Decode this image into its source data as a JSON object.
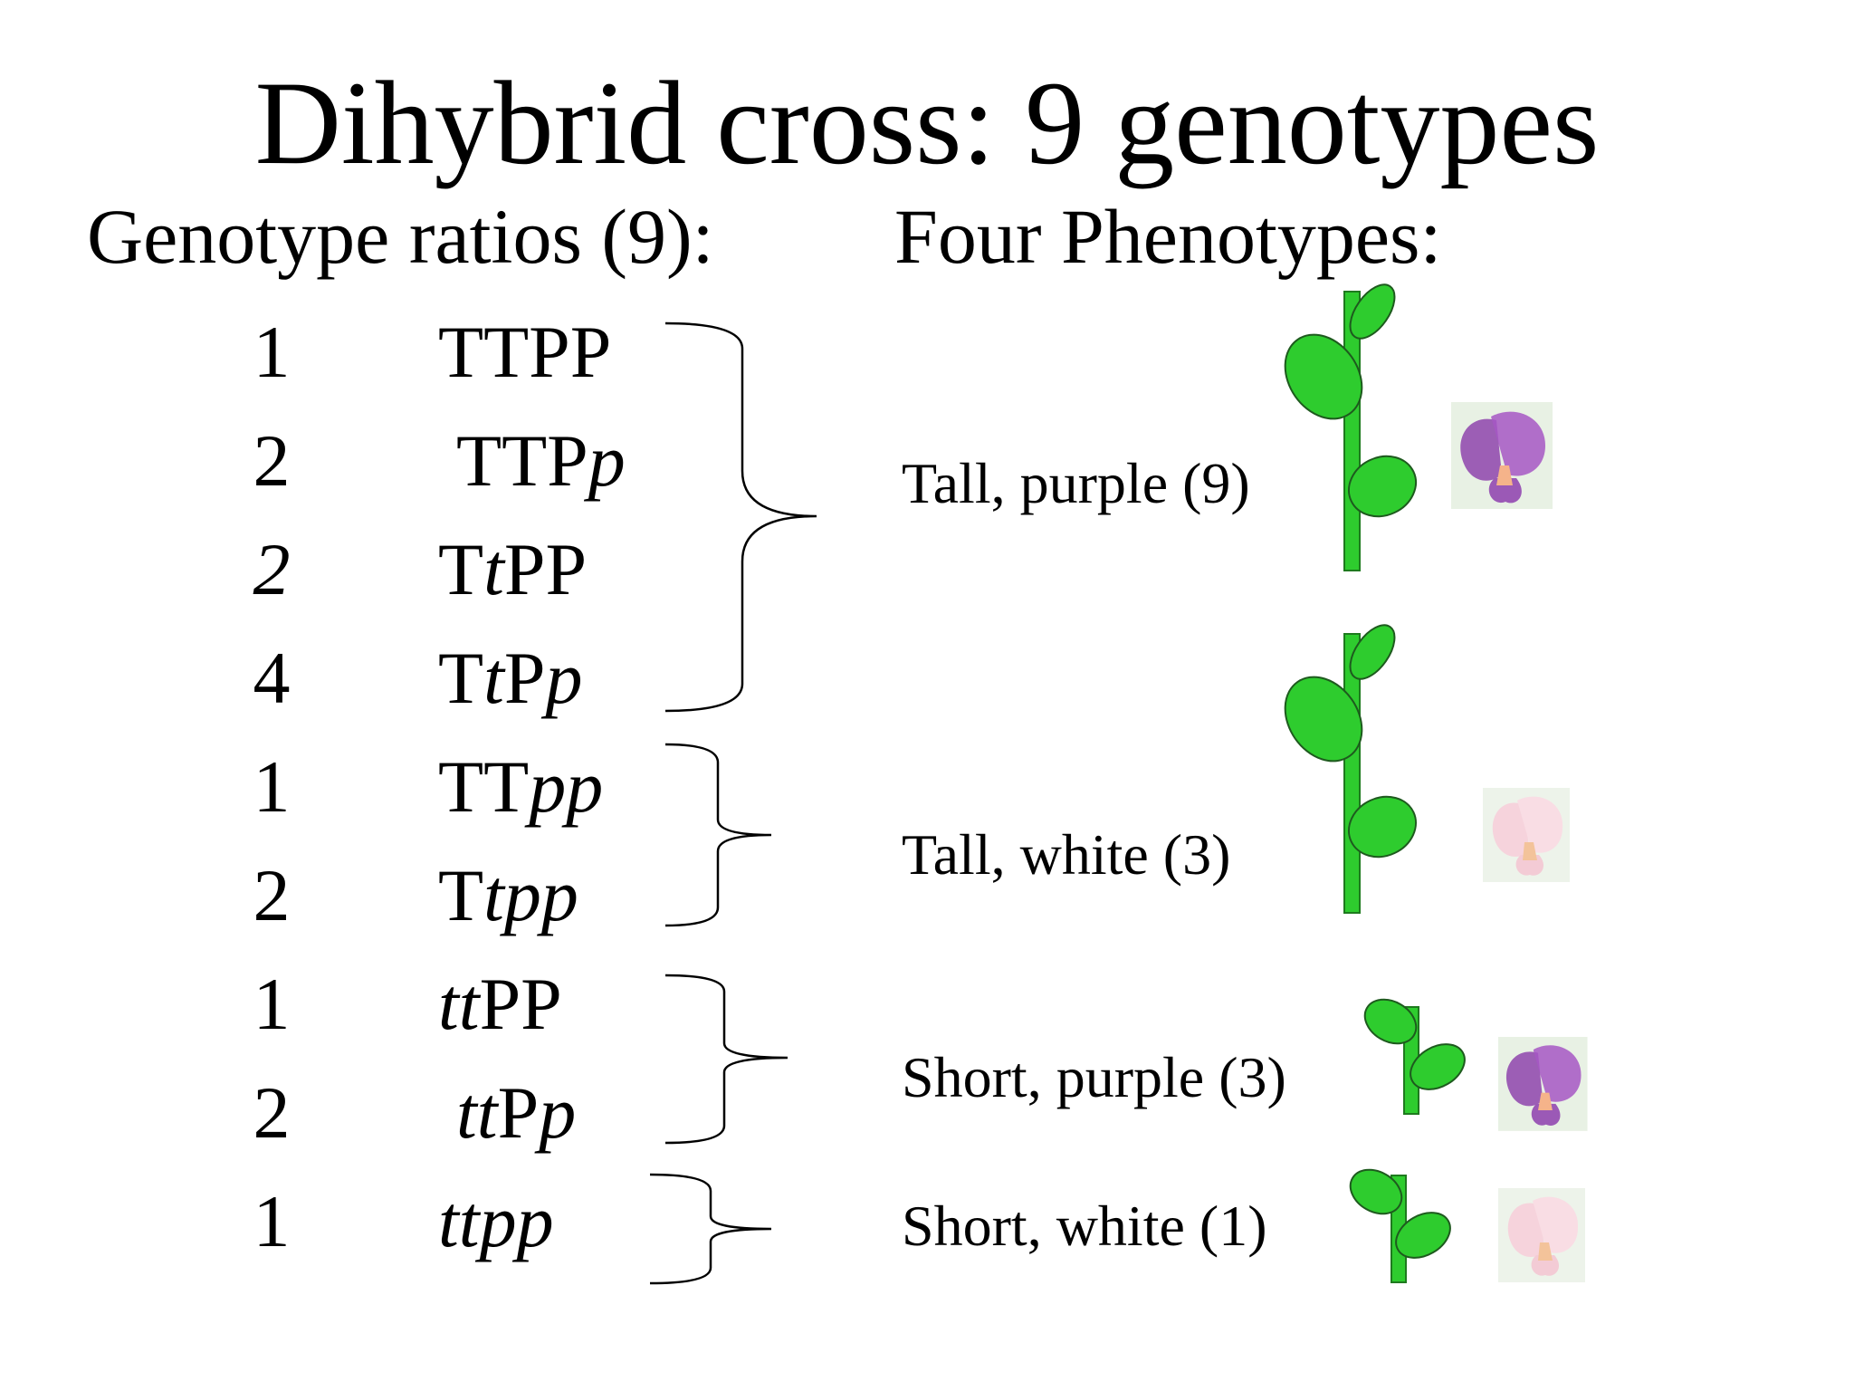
{
  "title": "Dihybrid cross: 9 genotypes",
  "left_heading": "Genotype ratios (9):",
  "right_heading": "Four Phenotypes:",
  "genotypes": [
    {
      "ratio": "1",
      "italic_ratio": false,
      "segments": [
        {
          "t": "TTPP",
          "i": false
        }
      ]
    },
    {
      "ratio": "2",
      "italic_ratio": false,
      "segments": [
        {
          "t": "TTP",
          "i": false
        },
        {
          "t": "p",
          "i": true
        }
      ]
    },
    {
      "ratio": "2",
      "italic_ratio": true,
      "segments": [
        {
          "t": "T",
          "i": false
        },
        {
          "t": "t",
          "i": true
        },
        {
          "t": "PP",
          "i": false
        }
      ]
    },
    {
      "ratio": "4",
      "italic_ratio": false,
      "segments": [
        {
          "t": "T",
          "i": false
        },
        {
          "t": "t",
          "i": true
        },
        {
          "t": "P",
          "i": false
        },
        {
          "t": "p",
          "i": true
        }
      ]
    },
    {
      "ratio": "1",
      "italic_ratio": false,
      "segments": [
        {
          "t": "TT",
          "i": false
        },
        {
          "t": "pp",
          "i": true
        }
      ]
    },
    {
      "ratio": "2",
      "italic_ratio": false,
      "segments": [
        {
          "t": "T",
          "i": false
        },
        {
          "t": "tpp",
          "i": true
        }
      ]
    },
    {
      "ratio": "1",
      "italic_ratio": false,
      "segments": [
        {
          "t": "tt",
          "i": true
        },
        {
          "t": "PP",
          "i": false
        }
      ]
    },
    {
      "ratio": "2",
      "italic_ratio": false,
      "segments": [
        {
          "t": "tt",
          "i": true
        },
        {
          "t": "P",
          "i": false
        },
        {
          "t": "p",
          "i": true
        }
      ]
    },
    {
      "ratio": "1",
      "italic_ratio": false,
      "segments": [
        {
          "t": "ttpp",
          "i": true
        }
      ]
    }
  ],
  "phenotypes": [
    {
      "label": "Tall, purple (9)",
      "height": "tall",
      "flower": "purple"
    },
    {
      "label": "Tall, white (3)",
      "height": "tall",
      "flower": "white"
    },
    {
      "label": "Short, purple (3)",
      "height": "short",
      "flower": "purple"
    },
    {
      "label": "Short, white (1)",
      "height": "short",
      "flower": "white"
    }
  ],
  "colors": {
    "stem": "#2ecc2e",
    "leaf": "#2ecc2e",
    "purple": "#8e44ad",
    "white": "#f7d6e0"
  }
}
